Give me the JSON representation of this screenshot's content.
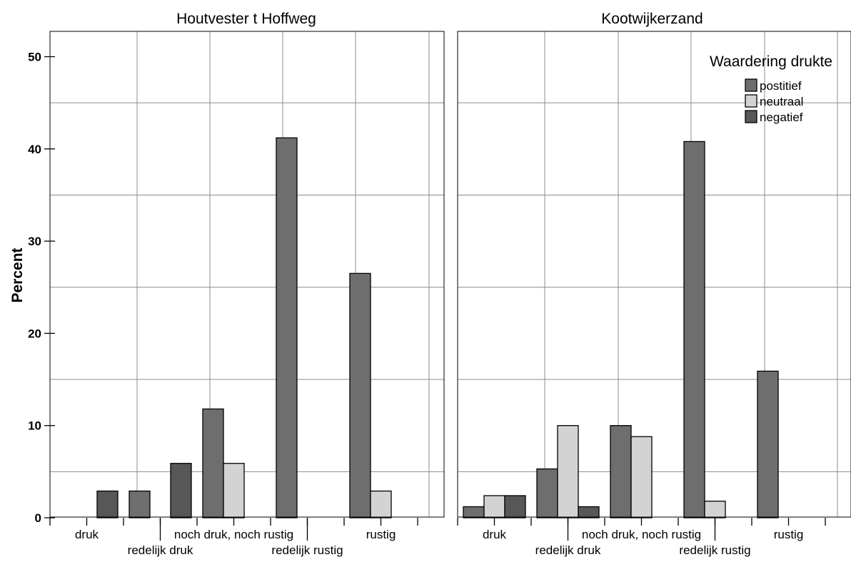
{
  "chart_data": {
    "type": "bar",
    "ylabel": "Percent",
    "ylim": [
      0,
      52
    ],
    "yticks": [
      0,
      10,
      20,
      30,
      40,
      50
    ],
    "grid": true,
    "categories": [
      "druk",
      "redelijk druk",
      "noch druk, noch rustig",
      "redelijk rustig",
      "rustig"
    ],
    "legend": {
      "title": "Waardering drukte",
      "placement": "top-right",
      "entries": [
        "postitief",
        "neutraal",
        "negatief"
      ]
    },
    "series_colors": [
      "#6e6e6e",
      "#d3d3d3",
      "#575757"
    ],
    "panels": [
      {
        "title": "Houtvester t Hoffweg",
        "series": [
          {
            "name": "postitief",
            "values": [
              0,
              2.9,
              11.8,
              41.2,
              26.5
            ]
          },
          {
            "name": "neutraal",
            "values": [
              0,
              0,
              5.9,
              0,
              2.9
            ]
          },
          {
            "name": "negatief",
            "values": [
              2.9,
              5.9,
              0,
              0,
              0
            ]
          }
        ]
      },
      {
        "title": "Kootwijkerzand",
        "series": [
          {
            "name": "postitief",
            "values": [
              1.2,
              5.3,
              10.0,
              40.8,
              15.9
            ]
          },
          {
            "name": "neutraal",
            "values": [
              2.4,
              10.0,
              8.8,
              1.8,
              0
            ]
          },
          {
            "name": "negatief",
            "values": [
              2.4,
              1.2,
              0,
              0,
              0
            ]
          }
        ]
      }
    ]
  }
}
